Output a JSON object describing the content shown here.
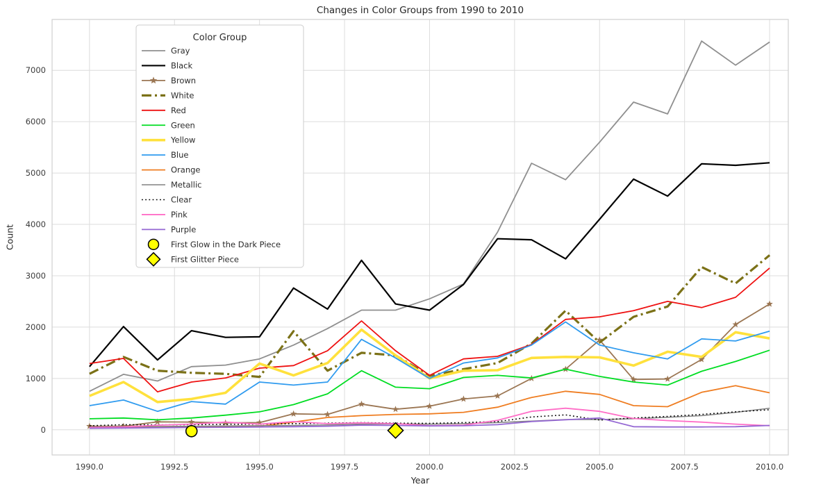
{
  "chart": {
    "title": "Changes in Color Groups from 1990 to 2010",
    "xlabel": "Year",
    "ylabel": "Count",
    "legend_title": "Color Group"
  },
  "chart_data": {
    "type": "line",
    "title": "Changes in Color Groups from 1990 to 2010",
    "xlabel": "Year",
    "ylabel": "Count",
    "grid": true,
    "legend_position": "upper left",
    "xlim": [
      1988.9,
      2010.55
    ],
    "ylim": [
      -490,
      7990
    ],
    "x_ticks": [
      {
        "value": 1990,
        "label": "1990.0"
      },
      {
        "value": 1992.5,
        "label": "1992.5"
      },
      {
        "value": 1995,
        "label": "1995.0"
      },
      {
        "value": 1997.5,
        "label": "1997.5"
      },
      {
        "value": 2000,
        "label": "2000.0"
      },
      {
        "value": 2002.5,
        "label": "2002.5"
      },
      {
        "value": 2005,
        "label": "2005.0"
      },
      {
        "value": 2007.5,
        "label": "2007.5"
      },
      {
        "value": 2010,
        "label": "2010.0"
      }
    ],
    "y_ticks": [
      {
        "value": 0,
        "label": "0"
      },
      {
        "value": 1000,
        "label": "1000"
      },
      {
        "value": 2000,
        "label": "2000"
      },
      {
        "value": 3000,
        "label": "3000"
      },
      {
        "value": 4000,
        "label": "4000"
      },
      {
        "value": 5000,
        "label": "5000"
      },
      {
        "value": 6000,
        "label": "6000"
      },
      {
        "value": 7000,
        "label": "7000"
      }
    ],
    "x": [
      1990,
      1991,
      1992,
      1993,
      1994,
      1995,
      1996,
      1997,
      1998,
      1999,
      2000,
      2001,
      2002,
      2003,
      2004,
      2005,
      2006,
      2007,
      2008,
      2009,
      2010
    ],
    "series": [
      {
        "name": "Gray",
        "color": "#8f8f8f",
        "width": 1.8,
        "dash": "",
        "marker": "",
        "values": [
          750,
          1080,
          950,
          1230,
          1260,
          1380,
          1650,
          1970,
          2330,
          2330,
          2550,
          2840,
          3850,
          5190,
          4870,
          5600,
          6380,
          6150,
          7570,
          7100,
          7550
        ]
      },
      {
        "name": "Black",
        "color": "#000000",
        "width": 2.2,
        "dash": "",
        "marker": "",
        "values": [
          1230,
          2010,
          1360,
          1930,
          1800,
          1810,
          2760,
          2350,
          3300,
          2450,
          2330,
          2830,
          3720,
          3700,
          3330,
          4100,
          4880,
          4550,
          5180,
          5150,
          5200
        ]
      },
      {
        "name": "Brown",
        "color": "#9b7653",
        "width": 1.8,
        "dash": "",
        "marker": "star",
        "values": [
          70,
          70,
          155,
          150,
          135,
          140,
          310,
          300,
          500,
          400,
          460,
          600,
          660,
          1000,
          1180,
          1750,
          980,
          990,
          1370,
          2050,
          2450
        ]
      },
      {
        "name": "White",
        "color": "#7b7117",
        "width": 3.2,
        "dash": "14 5 3 5",
        "marker": "",
        "values": [
          1090,
          1420,
          1150,
          1110,
          1090,
          1030,
          1920,
          1150,
          1500,
          1450,
          1050,
          1180,
          1300,
          1680,
          2320,
          1700,
          2200,
          2400,
          3170,
          2850,
          3400
        ]
      },
      {
        "name": "Red",
        "color": "#ee1111",
        "width": 1.8,
        "dash": "",
        "marker": "",
        "values": [
          1290,
          1390,
          740,
          930,
          1010,
          1200,
          1250,
          1540,
          2120,
          1540,
          1060,
          1380,
          1430,
          1660,
          2150,
          2200,
          2320,
          2500,
          2380,
          2580,
          3150
        ]
      },
      {
        "name": "Green",
        "color": "#00dd22",
        "width": 1.8,
        "dash": "",
        "marker": "",
        "values": [
          215,
          230,
          195,
          230,
          285,
          350,
          490,
          700,
          1150,
          830,
          800,
          1020,
          1060,
          1010,
          1180,
          1040,
          930,
          870,
          1140,
          1330,
          1550
        ]
      },
      {
        "name": "Yellow",
        "color": "#ffe13c",
        "width": 3.6,
        "dash": "",
        "marker": "",
        "values": [
          660,
          930,
          540,
          600,
          720,
          1290,
          1060,
          1300,
          1950,
          1450,
          1000,
          1150,
          1160,
          1400,
          1420,
          1410,
          1250,
          1520,
          1420,
          1900,
          1780
        ]
      },
      {
        "name": "Blue",
        "color": "#2f9bef",
        "width": 1.8,
        "dash": "",
        "marker": "",
        "values": [
          470,
          580,
          360,
          550,
          500,
          930,
          870,
          930,
          1760,
          1400,
          1000,
          1300,
          1400,
          1650,
          2100,
          1650,
          1500,
          1380,
          1770,
          1730,
          1920
        ]
      },
      {
        "name": "Orange",
        "color": "#ef7d21",
        "width": 1.8,
        "dash": "",
        "marker": "",
        "values": [
          40,
          45,
          50,
          55,
          60,
          70,
          150,
          240,
          275,
          300,
          310,
          340,
          440,
          630,
          750,
          690,
          470,
          450,
          730,
          860,
          720
        ]
      },
      {
        "name": "Metallic",
        "color": "#808080",
        "width": 1.5,
        "dash": "",
        "marker": "",
        "values": [
          55,
          60,
          65,
          70,
          75,
          80,
          85,
          95,
          110,
          115,
          110,
          120,
          140,
          170,
          200,
          200,
          215,
          245,
          275,
          340,
          420
        ]
      },
      {
        "name": "Clear",
        "color": "#000000",
        "width": 1.6,
        "dash": "1.8 3.4",
        "marker": "",
        "values": [
          80,
          100,
          95,
          100,
          105,
          110,
          120,
          130,
          140,
          130,
          125,
          140,
          160,
          250,
          290,
          190,
          230,
          260,
          300,
          350,
          390
        ]
      },
      {
        "name": "Pink",
        "color": "#ff6ec7",
        "width": 1.8,
        "dash": "",
        "marker": "",
        "values": [
          45,
          55,
          90,
          110,
          150,
          110,
          160,
          120,
          135,
          120,
          80,
          90,
          185,
          360,
          420,
          360,
          220,
          180,
          150,
          110,
          80
        ]
      },
      {
        "name": "Purple",
        "color": "#9467d3",
        "width": 1.8,
        "dash": "",
        "marker": "",
        "values": [
          30,
          35,
          40,
          45,
          50,
          55,
          60,
          70,
          90,
          85,
          75,
          80,
          100,
          160,
          195,
          230,
          60,
          55,
          55,
          60,
          85
        ]
      }
    ],
    "annotations": [
      {
        "name": "First Glow in the Dark Piece",
        "marker": "circle",
        "x": 1993,
        "y": 0,
        "fill": "#ffff00",
        "edge": "#000000"
      },
      {
        "name": "First Glitter Piece",
        "marker": "diamond",
        "x": 1999,
        "y": 0,
        "fill": "#ffff00",
        "edge": "#000000"
      }
    ]
  }
}
